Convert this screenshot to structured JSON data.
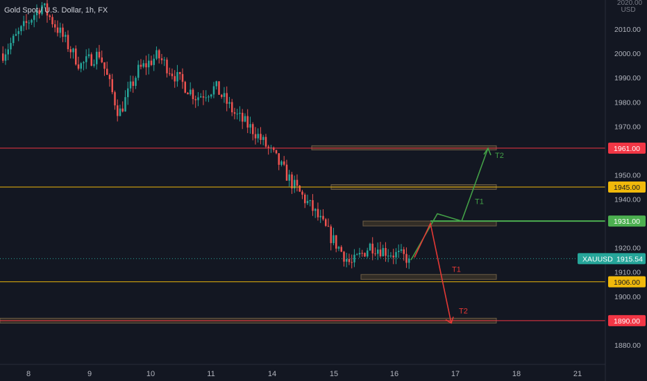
{
  "header": {
    "symbol_title": "Gold Spot / U.S. Dollar, 1h, FX"
  },
  "price_axis": {
    "top_label": "2020.00",
    "currency": "USD"
  },
  "colors": {
    "background": "#131722",
    "up_candle": "#26a69a",
    "down_candle": "#ef5350",
    "red_level": "#f23645",
    "yellow_level": "#f0b90b",
    "green_level": "#4caf50",
    "current_price": "#26a69a",
    "zone_fill": "#3b3328",
    "arrow_green": "#43a047",
    "arrow_red": "#e53935"
  },
  "current_price": {
    "symbol": "XAUUSD",
    "value": "1915.54",
    "price": 1915.54
  },
  "chart_data": {
    "type": "candlestick",
    "title": "Gold Spot / U.S. Dollar, 1h, FX",
    "ylim": [
      1872,
      2022
    ],
    "y_ticks": [
      {
        "v": 2010,
        "label": "2010.00"
      },
      {
        "v": 2000,
        "label": "2000.00"
      },
      {
        "v": 1990,
        "label": "1990.00"
      },
      {
        "v": 1980,
        "label": "1980.00"
      },
      {
        "v": 1970,
        "label": "1970.00"
      },
      {
        "v": 1950,
        "label": "1950.00"
      },
      {
        "v": 1940,
        "label": "1940.00"
      },
      {
        "v": 1920,
        "label": "1920.00"
      },
      {
        "v": 1910,
        "label": "1910.00"
      },
      {
        "v": 1900,
        "label": "1900.00"
      },
      {
        "v": 1880,
        "label": "1880.00"
      }
    ],
    "x_ticks": [
      "8",
      "9",
      "10",
      "11",
      "14",
      "15",
      "16",
      "17",
      "18",
      "21"
    ],
    "price_path": [
      2000,
      2010,
      2020,
      2008,
      1995,
      2000,
      1975,
      1993,
      1999,
      1990,
      1982,
      1986,
      1975,
      1968,
      1958,
      1946,
      1936,
      1924,
      1913,
      1921,
      1918,
      1915.5
    ],
    "levels": [
      {
        "price": 1961,
        "label": "1961.00",
        "kind": "red"
      },
      {
        "price": 1945,
        "label": "1945.00",
        "kind": "yellow"
      },
      {
        "price": 1931,
        "label": "1931.00",
        "kind": "green"
      },
      {
        "price": 1906,
        "label": "1906.00",
        "kind": "yellow"
      },
      {
        "price": 1890,
        "label": "1890.00",
        "kind": "red"
      }
    ],
    "zones": [
      {
        "top": 1962,
        "bottom": 1961
      },
      {
        "top": 1946,
        "bottom": 1944
      },
      {
        "top": 1931,
        "bottom": 1929
      },
      {
        "top": 1909,
        "bottom": 1907
      },
      {
        "top": 1891,
        "bottom": 1889
      }
    ],
    "targets": [
      {
        "label": "T1",
        "direction": "up",
        "price": 1931
      },
      {
        "label": "T2",
        "direction": "up",
        "price": 1961
      },
      {
        "label": "T1",
        "direction": "down",
        "price": 1906
      },
      {
        "label": "T2",
        "direction": "down",
        "price": 1890
      }
    ]
  }
}
